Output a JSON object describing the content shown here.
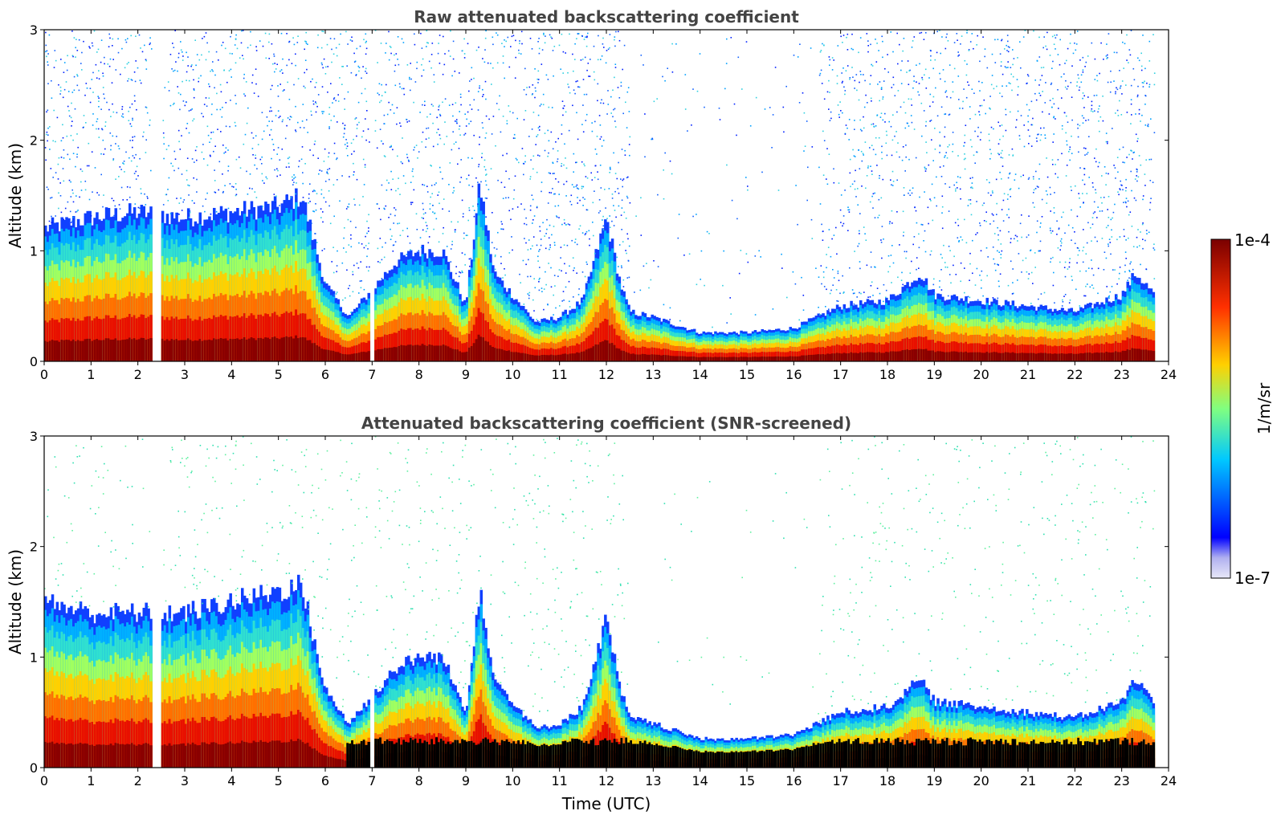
{
  "figure": {
    "type": "figure",
    "xlabel": "Time (UTC)"
  },
  "chart_data": [
    {
      "type": "heatmap",
      "title": "Raw attenuated backscattering coefficient",
      "xlabel": "",
      "ylabel": "Altitude (km)",
      "xlim": [
        0,
        24
      ],
      "ylim": [
        0,
        3
      ],
      "xticks": [
        "0",
        "1",
        "2",
        "3",
        "4",
        "5",
        "6",
        "7",
        "8",
        "9",
        "10",
        "11",
        "12",
        "13",
        "14",
        "15",
        "16",
        "17",
        "18",
        "19",
        "20",
        "21",
        "22",
        "23",
        "24"
      ],
      "yticks": [
        "0",
        "1",
        "2",
        "3"
      ],
      "data_end_hour": 23.7,
      "gaps_hours": [
        [
          2.28,
          2.5
        ],
        [
          6.93,
          7.05
        ]
      ],
      "boundary_layer_top_km": [
        [
          0,
          1.2
        ],
        [
          1,
          1.3
        ],
        [
          2,
          1.35
        ],
        [
          3,
          1.3
        ],
        [
          4,
          1.35
        ],
        [
          5,
          1.4
        ],
        [
          5.5,
          1.5
        ],
        [
          6,
          0.7
        ],
        [
          6.5,
          0.4
        ],
        [
          7.5,
          0.9
        ],
        [
          8,
          1.0
        ],
        [
          8.5,
          1.0
        ],
        [
          9,
          0.5
        ],
        [
          9.3,
          1.6
        ],
        [
          9.6,
          0.8
        ],
        [
          10,
          0.6
        ],
        [
          10.5,
          0.35
        ],
        [
          11,
          0.4
        ],
        [
          11.5,
          0.55
        ],
        [
          12,
          1.3
        ],
        [
          12.3,
          0.7
        ],
        [
          12.5,
          0.45
        ],
        [
          13,
          0.4
        ],
        [
          14,
          0.26
        ],
        [
          15,
          0.26
        ],
        [
          16,
          0.3
        ],
        [
          17,
          0.5
        ],
        [
          18,
          0.55
        ],
        [
          18.7,
          0.8
        ],
        [
          19,
          0.6
        ],
        [
          20,
          0.55
        ],
        [
          21,
          0.5
        ],
        [
          22,
          0.45
        ],
        [
          23,
          0.6
        ],
        [
          23.3,
          0.8
        ],
        [
          23.7,
          0.6
        ]
      ]
    },
    {
      "type": "heatmap",
      "title": "Attenuated backscattering coefficient (SNR-screened)",
      "xlabel": "Time (UTC)",
      "ylabel": "Altitude (km)",
      "xlim": [
        0,
        24
      ],
      "ylim": [
        0,
        3
      ],
      "xticks": [
        "0",
        "1",
        "2",
        "3",
        "4",
        "5",
        "6",
        "7",
        "8",
        "9",
        "10",
        "11",
        "12",
        "13",
        "14",
        "15",
        "16",
        "17",
        "18",
        "19",
        "20",
        "21",
        "22",
        "23",
        "24"
      ],
      "yticks": [
        "0",
        "1",
        "2",
        "3"
      ],
      "data_end_hour": 23.7,
      "gaps_hours": [
        [
          2.28,
          2.5
        ],
        [
          6.93,
          7.05
        ]
      ],
      "boundary_layer_top_km": [
        [
          0,
          1.5
        ],
        [
          1,
          1.4
        ],
        [
          2,
          1.4
        ],
        [
          3,
          1.4
        ],
        [
          4,
          1.5
        ],
        [
          5,
          1.6
        ],
        [
          5.5,
          1.65
        ],
        [
          6,
          0.7
        ],
        [
          6.5,
          0.4
        ],
        [
          7.5,
          0.9
        ],
        [
          8,
          1.0
        ],
        [
          8.5,
          1.0
        ],
        [
          9,
          0.5
        ],
        [
          9.3,
          1.65
        ],
        [
          9.6,
          0.8
        ],
        [
          10,
          0.6
        ],
        [
          10.5,
          0.35
        ],
        [
          11,
          0.4
        ],
        [
          11.5,
          0.55
        ],
        [
          12,
          1.35
        ],
        [
          12.3,
          0.7
        ],
        [
          12.5,
          0.45
        ],
        [
          13,
          0.4
        ],
        [
          14,
          0.26
        ],
        [
          15,
          0.26
        ],
        [
          16,
          0.3
        ],
        [
          17,
          0.5
        ],
        [
          18,
          0.55
        ],
        [
          18.7,
          0.8
        ],
        [
          19,
          0.6
        ],
        [
          20,
          0.55
        ],
        [
          21,
          0.5
        ],
        [
          22,
          0.45
        ],
        [
          23,
          0.6
        ],
        [
          23.3,
          0.8
        ],
        [
          23.7,
          0.6
        ]
      ]
    }
  ],
  "colorbar": {
    "label": "1/m/sr",
    "max_label": "1e-4",
    "min_label": "1e-7",
    "vmin": 1e-07,
    "vmax": 0.0001,
    "scale": "log",
    "colormap": "jet",
    "colors": [
      "#e8e8f8",
      "#0000ff",
      "#00c8ff",
      "#80ff80",
      "#ffd000",
      "#ff3000",
      "#7a0000"
    ]
  }
}
